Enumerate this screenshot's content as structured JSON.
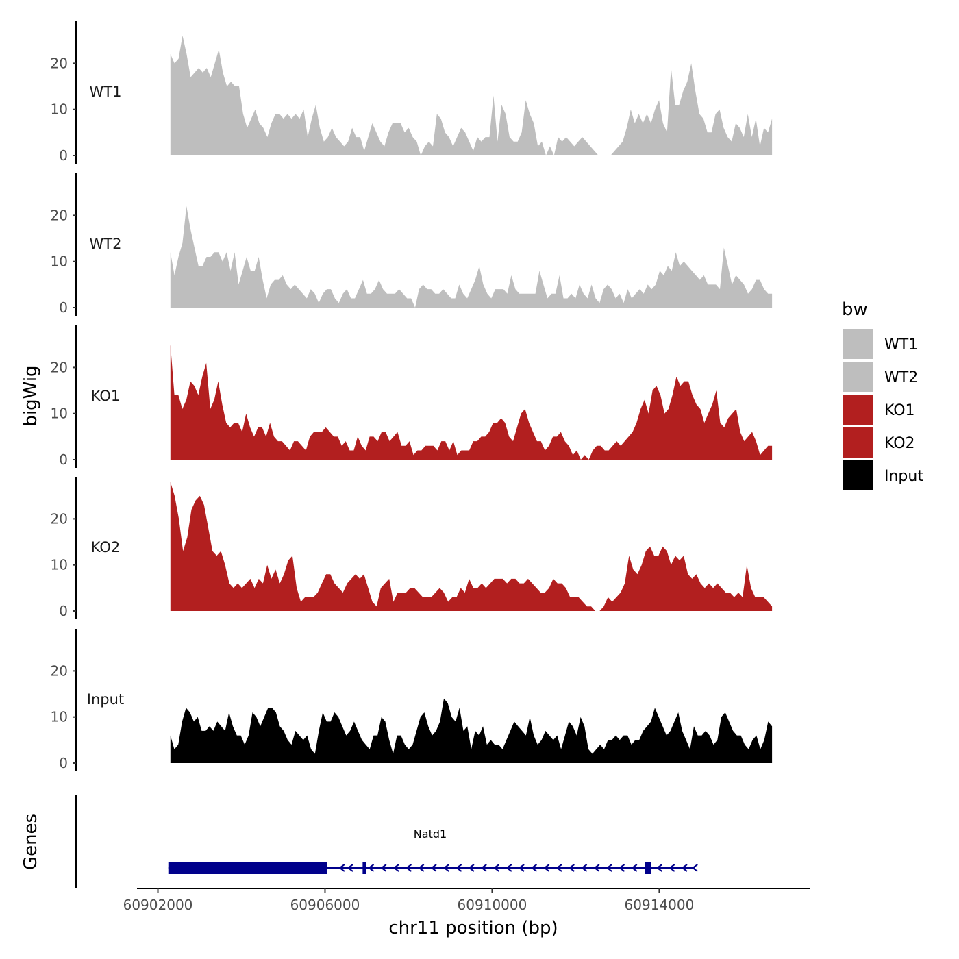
{
  "chart_data": {
    "type": "area",
    "title": "",
    "ylabel": "bigWig",
    "xlabel": "chr11 position (bp)",
    "xlim": [
      60901500,
      60917600
    ],
    "data_x_range": [
      60902300,
      60916700
    ],
    "ylim": [
      0,
      29
    ],
    "y_ticks": [
      "0",
      "10",
      "20"
    ],
    "y_tick_values": [
      0,
      10,
      20
    ],
    "x_ticks": [
      "60902000",
      "60906000",
      "60910000",
      "60914000"
    ],
    "x_tick_values": [
      60902000,
      60906000,
      60910000,
      60914000
    ],
    "legend": {
      "title": "bw",
      "position": "right",
      "entries": [
        {
          "label": "WT1",
          "color": "#bebebe"
        },
        {
          "label": "WT2",
          "color": "#bebebe"
        },
        {
          "label": "KO1",
          "color": "#b21f1f"
        },
        {
          "label": "KO2",
          "color": "#b21f1f"
        },
        {
          "label": "Input",
          "color": "#000000"
        }
      ]
    },
    "series": [
      {
        "name": "WT1",
        "color": "#bebebe",
        "values": [
          22,
          20,
          21,
          26,
          22,
          17,
          18,
          19,
          18,
          19,
          17,
          20,
          23,
          18,
          15,
          16,
          15,
          15,
          9,
          6,
          8,
          10,
          7,
          6,
          4,
          7,
          9,
          9,
          8,
          9,
          8,
          9,
          8,
          10,
          4,
          8,
          11,
          6,
          3,
          4,
          6,
          4,
          3,
          2,
          3,
          6,
          4,
          4,
          1,
          4,
          7,
          5,
          3,
          2,
          5,
          7,
          7,
          7,
          5,
          6,
          4,
          3,
          0,
          2,
          3,
          2,
          9,
          8,
          5,
          4,
          2,
          4,
          6,
          5,
          3,
          1,
          4,
          3,
          4,
          4,
          13,
          3,
          11,
          9,
          4,
          3,
          3,
          5,
          12,
          9,
          7,
          2,
          3,
          0,
          2,
          0,
          4,
          3,
          4,
          3,
          2,
          3,
          4,
          3,
          2,
          1,
          0,
          0,
          0,
          0,
          1,
          2,
          3,
          6,
          10,
          7,
          9,
          7,
          9,
          7,
          10,
          12,
          7,
          5,
          19,
          11,
          11,
          14,
          16,
          20,
          14,
          9,
          8,
          5,
          5,
          9,
          10,
          6,
          4,
          3,
          7,
          6,
          4,
          9,
          4,
          8,
          2,
          6,
          5,
          8
        ]
      },
      {
        "name": "WT2",
        "color": "#bebebe",
        "values": [
          12,
          7,
          11,
          14,
          22,
          17,
          13,
          9,
          9,
          11,
          11,
          12,
          12,
          10,
          12,
          8,
          12,
          5,
          8,
          11,
          8,
          8,
          11,
          6,
          2,
          5,
          6,
          6,
          7,
          5,
          4,
          5,
          4,
          3,
          2,
          4,
          3,
          1,
          3,
          4,
          4,
          2,
          1,
          3,
          4,
          2,
          2,
          4,
          6,
          3,
          3,
          4,
          6,
          4,
          3,
          3,
          3,
          4,
          3,
          2,
          2,
          0,
          4,
          5,
          4,
          4,
          3,
          3,
          4,
          3,
          2,
          2,
          5,
          3,
          2,
          4,
          6,
          9,
          5,
          3,
          2,
          4,
          4,
          4,
          3,
          7,
          4,
          3,
          3,
          3,
          3,
          3,
          8,
          5,
          2,
          3,
          3,
          7,
          2,
          2,
          3,
          2,
          5,
          3,
          2,
          5,
          2,
          1,
          4,
          5,
          4,
          2,
          3,
          1,
          4,
          2,
          3,
          4,
          3,
          5,
          4,
          5,
          8,
          7,
          9,
          8,
          12,
          9,
          10,
          9,
          8,
          7,
          6,
          7,
          5,
          5,
          5,
          4,
          13,
          9,
          5,
          7,
          6,
          5,
          3,
          4,
          6,
          6,
          4,
          3,
          3
        ]
      },
      {
        "name": "KO1",
        "color": "#b21f1f",
        "values": [
          25,
          14,
          14,
          11,
          13,
          17,
          16,
          14,
          18,
          21,
          11,
          13,
          17,
          12,
          8,
          7,
          8,
          8,
          6,
          10,
          7,
          5,
          7,
          7,
          5,
          8,
          5,
          4,
          4,
          3,
          2,
          4,
          4,
          3,
          2,
          5,
          6,
          6,
          6,
          7,
          6,
          5,
          5,
          3,
          4,
          2,
          2,
          5,
          3,
          2,
          5,
          5,
          4,
          6,
          6,
          4,
          5,
          6,
          3,
          3,
          4,
          1,
          2,
          2,
          3,
          3,
          3,
          2,
          4,
          4,
          2,
          4,
          1,
          2,
          2,
          2,
          4,
          4,
          5,
          5,
          6,
          8,
          8,
          9,
          8,
          5,
          4,
          7,
          10,
          11,
          8,
          6,
          4,
          4,
          2,
          3,
          5,
          5,
          6,
          4,
          3,
          1,
          2,
          0,
          1,
          0,
          2,
          3,
          3,
          2,
          2,
          3,
          4,
          3,
          4,
          5,
          6,
          8,
          11,
          13,
          10,
          15,
          16,
          14,
          10,
          11,
          14,
          18,
          16,
          17,
          17,
          14,
          12,
          11,
          8,
          10,
          12,
          15,
          8,
          7,
          9,
          10,
          11,
          6,
          4,
          5,
          6,
          4,
          1,
          2,
          3,
          3
        ]
      },
      {
        "name": "KO2",
        "color": "#b21f1f",
        "values": [
          28,
          25,
          20,
          13,
          16,
          22,
          24,
          25,
          23,
          18,
          13,
          12,
          13,
          10,
          6,
          5,
          6,
          5,
          6,
          7,
          5,
          7,
          6,
          10,
          7,
          9,
          6,
          8,
          11,
          12,
          5,
          2,
          3,
          3,
          3,
          4,
          6,
          8,
          8,
          6,
          5,
          4,
          6,
          7,
          8,
          7,
          8,
          5,
          2,
          1,
          5,
          6,
          7,
          2,
          4,
          4,
          4,
          5,
          5,
          4,
          3,
          3,
          3,
          4,
          5,
          4,
          2,
          3,
          3,
          5,
          4,
          7,
          5,
          5,
          6,
          5,
          6,
          7,
          7,
          7,
          6,
          7,
          7,
          6,
          6,
          7,
          6,
          5,
          4,
          4,
          5,
          7,
          6,
          6,
          5,
          3,
          3,
          3,
          2,
          1,
          1,
          0,
          0,
          1,
          3,
          2,
          3,
          4,
          6,
          12,
          9,
          8,
          10,
          13,
          14,
          12,
          12,
          14,
          13,
          10,
          12,
          11,
          12,
          8,
          7,
          8,
          6,
          5,
          6,
          5,
          6,
          5,
          4,
          4,
          3,
          4,
          3,
          10,
          5,
          3,
          3,
          3,
          2,
          1
        ]
      },
      {
        "name": "Input",
        "color": "#000000",
        "values": [
          6,
          3,
          4,
          9,
          12,
          11,
          9,
          10,
          7,
          7,
          8,
          7,
          9,
          8,
          7,
          11,
          8,
          6,
          6,
          4,
          6,
          11,
          10,
          8,
          10,
          12,
          12,
          11,
          8,
          7,
          5,
          4,
          7,
          6,
          5,
          6,
          3,
          2,
          7,
          11,
          9,
          9,
          11,
          10,
          8,
          6,
          7,
          9,
          7,
          5,
          4,
          3,
          6,
          6,
          10,
          9,
          5,
          2,
          6,
          6,
          4,
          3,
          4,
          7,
          10,
          11,
          8,
          6,
          7,
          9,
          14,
          13,
          10,
          9,
          12,
          7,
          8,
          3,
          7,
          6,
          8,
          4,
          5,
          4,
          4,
          3,
          5,
          7,
          9,
          8,
          7,
          6,
          10,
          6,
          4,
          5,
          7,
          6,
          5,
          6,
          3,
          6,
          9,
          8,
          6,
          10,
          8,
          3,
          2,
          3,
          4,
          3,
          5,
          5,
          6,
          5,
          6,
          6,
          4,
          5,
          5,
          7,
          8,
          9,
          12,
          10,
          8,
          6,
          7,
          9,
          11,
          7,
          5,
          3,
          8,
          6,
          6,
          7,
          6,
          4,
          5,
          10,
          11,
          9,
          7,
          6,
          6,
          4,
          3,
          5,
          6,
          3,
          5,
          9,
          8
        ]
      }
    ],
    "gene_track": {
      "label": "Genes",
      "gene_name": "Natd1",
      "color": "#00008b",
      "strand": "-",
      "thick_segments": [
        [
          60902250,
          60906050
        ],
        [
          60906900,
          60906980
        ],
        [
          60913650,
          60913800
        ]
      ],
      "line_range": [
        60902250,
        60914850
      ],
      "arrow_positions": [
        60906400,
        60906600,
        60907100,
        60907400,
        60907700,
        60908000,
        60908300,
        60908600,
        60908900,
        60909200,
        60909500,
        60909800,
        60910100,
        60910400,
        60910700,
        60911000,
        60911300,
        60911600,
        60911900,
        60912200,
        60912500,
        60912800,
        60913100,
        60913400,
        60914000,
        60914300,
        60914600,
        60914850
      ]
    }
  }
}
